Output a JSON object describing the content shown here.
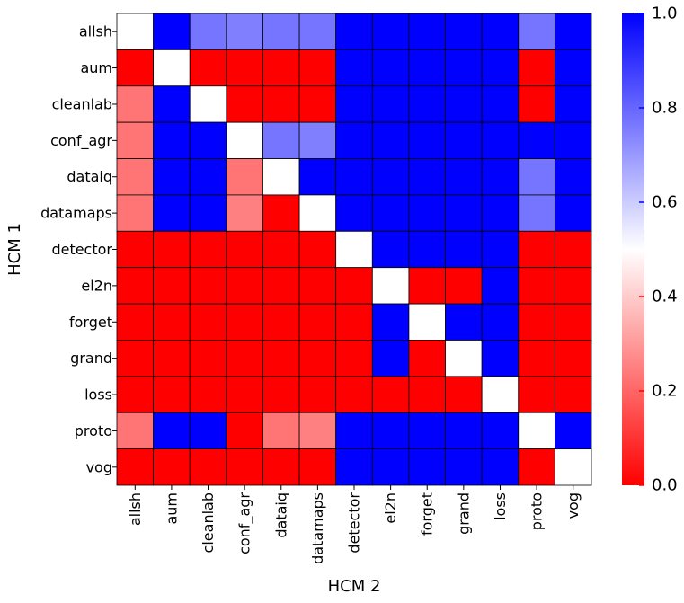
{
  "chart_data": {
    "type": "heatmap",
    "title": "",
    "xlabel": "HCM 2",
    "ylabel": "HCM 1",
    "x_categories": [
      "allsh",
      "aum",
      "cleanlab",
      "conf_agr",
      "dataiq",
      "datamaps",
      "detector",
      "el2n",
      "forget",
      "grand",
      "loss",
      "proto",
      "vog"
    ],
    "y_categories": [
      "allsh",
      "aum",
      "cleanlab",
      "conf_agr",
      "dataiq",
      "datamaps",
      "detector",
      "el2n",
      "forget",
      "grand",
      "loss",
      "proto",
      "vog"
    ],
    "values": [
      [
        0.5,
        1.0,
        0.77,
        0.75,
        0.77,
        0.77,
        1.0,
        1.0,
        1.0,
        1.0,
        1.0,
        0.77,
        1.0
      ],
      [
        0.0,
        0.5,
        0.0,
        0.0,
        0.0,
        0.0,
        1.0,
        1.0,
        1.0,
        1.0,
        1.0,
        0.0,
        1.0
      ],
      [
        0.23,
        1.0,
        0.5,
        0.0,
        0.0,
        0.0,
        1.0,
        1.0,
        1.0,
        1.0,
        1.0,
        0.0,
        1.0
      ],
      [
        0.23,
        1.0,
        1.0,
        0.5,
        0.77,
        0.75,
        1.0,
        1.0,
        1.0,
        1.0,
        1.0,
        1.0,
        1.0
      ],
      [
        0.23,
        1.0,
        1.0,
        0.23,
        0.5,
        1.0,
        1.0,
        1.0,
        1.0,
        1.0,
        1.0,
        0.77,
        1.0
      ],
      [
        0.23,
        1.0,
        1.0,
        0.25,
        0.0,
        0.5,
        1.0,
        1.0,
        1.0,
        1.0,
        1.0,
        0.77,
        1.0
      ],
      [
        0.0,
        0.0,
        0.0,
        0.0,
        0.0,
        0.0,
        0.5,
        1.0,
        1.0,
        1.0,
        1.0,
        0.0,
        0.0
      ],
      [
        0.0,
        0.0,
        0.0,
        0.0,
        0.0,
        0.0,
        0.0,
        0.5,
        0.0,
        0.0,
        1.0,
        0.0,
        0.0
      ],
      [
        0.0,
        0.0,
        0.0,
        0.0,
        0.0,
        0.0,
        0.0,
        1.0,
        0.5,
        1.0,
        1.0,
        0.0,
        0.0
      ],
      [
        0.0,
        0.0,
        0.0,
        0.0,
        0.0,
        0.0,
        0.0,
        1.0,
        0.0,
        0.5,
        1.0,
        0.0,
        0.0
      ],
      [
        0.0,
        0.0,
        0.0,
        0.0,
        0.0,
        0.0,
        0.0,
        0.0,
        0.0,
        0.0,
        0.5,
        0.0,
        0.0
      ],
      [
        0.23,
        1.0,
        1.0,
        0.0,
        0.23,
        0.25,
        1.0,
        1.0,
        1.0,
        1.0,
        1.0,
        0.5,
        1.0
      ],
      [
        0.0,
        0.0,
        0.0,
        0.0,
        0.0,
        0.0,
        1.0,
        1.0,
        1.0,
        1.0,
        1.0,
        0.0,
        0.5
      ]
    ],
    "colorbar": {
      "range": [
        0.0,
        1.0
      ],
      "ticks": [
        0.0,
        0.2,
        0.4,
        0.6,
        0.8,
        1.0
      ],
      "tick_labels": [
        "0.0",
        "0.2",
        "0.4",
        "0.6",
        "0.8",
        "1.0"
      ],
      "colormap": "bwr_r",
      "colors": {
        "low": "#ff0000",
        "mid": "#ffffff",
        "high": "#0000ff"
      }
    },
    "grid": true,
    "cell_border_color": "#000000"
  }
}
